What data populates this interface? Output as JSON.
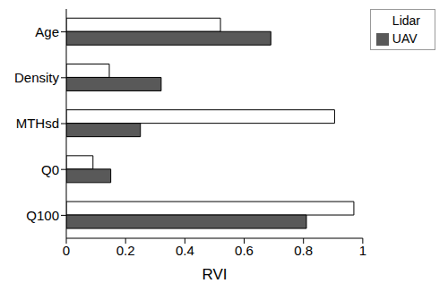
{
  "chart_data": {
    "type": "bar",
    "orientation": "horizontal",
    "categories": [
      "Age",
      "Density",
      "MTHsd",
      "Q0",
      "Q100"
    ],
    "series": [
      {
        "name": "Lidar",
        "color": "#ffffff",
        "values": [
          0.52,
          0.145,
          0.905,
          0.09,
          0.97
        ]
      },
      {
        "name": "UAV",
        "color": "#595959",
        "values": [
          0.69,
          0.32,
          0.25,
          0.15,
          0.81
        ]
      }
    ],
    "x_label": "RVI",
    "xlim": [
      0,
      1
    ],
    "xticks": [
      0,
      0.2,
      0.4,
      0.6,
      0.8,
      1
    ],
    "legend": "upper right",
    "grid": false
  }
}
